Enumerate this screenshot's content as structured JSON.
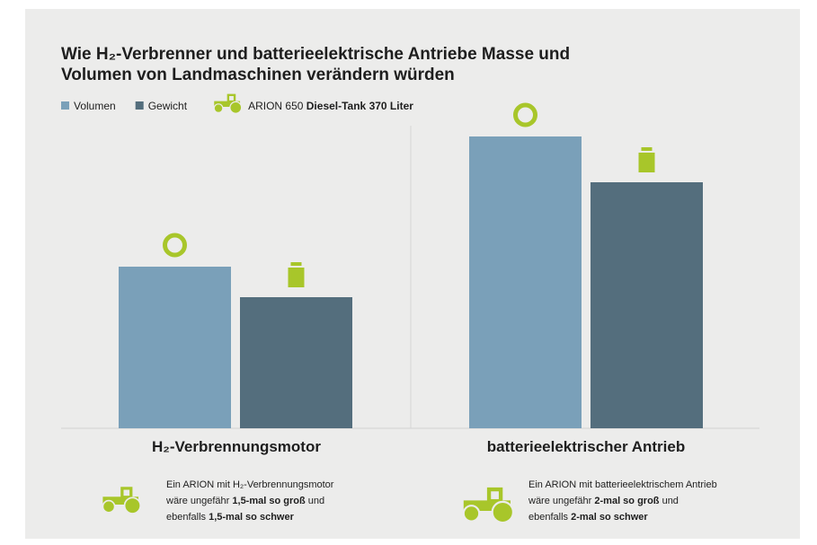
{
  "chart_data": {
    "type": "bar",
    "title": [
      "Wie H₂-Verbrenner und batterieelektrische Antriebe Masse und",
      "Volumen von Landmaschinen verändern würden"
    ],
    "categories": [
      "H₂-Verbrennungsmotor",
      "batterieelektrischer Antrieb"
    ],
    "series": [
      {
        "name": "Volumen",
        "color": "#7aa0b9",
        "values": [
          180,
          325
        ]
      },
      {
        "name": "Gewicht",
        "color": "#546e7d",
        "values": [
          146,
          274
        ]
      }
    ],
    "ylim": [
      0,
      340
    ],
    "legend_note": [
      "ARION 650",
      "Diesel-Tank 370 Liter"
    ],
    "accent_color": "#a8c62a",
    "notes": [
      [
        [
          {
            "t": "Ein ARION mit H₂-Verbrennungsmotor",
            "b": false
          }
        ],
        [
          {
            "t": "wäre ungefähr ",
            "b": false
          },
          {
            "t": "1,5-mal so groß",
            "b": true
          },
          {
            "t": " und",
            "b": false
          }
        ],
        [
          {
            "t": "ebenfalls ",
            "b": false
          },
          {
            "t": "1,5-mal so schwer",
            "b": true
          }
        ]
      ],
      [
        [
          {
            "t": "Ein ARION mit batterieelektrischem Antrieb",
            "b": false
          }
        ],
        [
          {
            "t": "wäre ungefähr ",
            "b": false
          },
          {
            "t": "2-mal so groß",
            "b": true
          },
          {
            "t": " und",
            "b": false
          }
        ],
        [
          {
            "t": "ebenfalls ",
            "b": false
          },
          {
            "t": "2-mal so schwer",
            "b": true
          }
        ]
      ]
    ]
  }
}
